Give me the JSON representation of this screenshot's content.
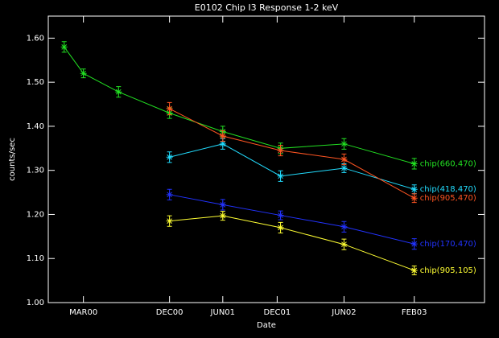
{
  "chart_data": {
    "type": "line",
    "title": "E0102 Chip I3 Response 1-2 keV",
    "x_label": "Date",
    "y_label": "counts/sec",
    "xlim": [
      1999.85,
      2003.7
    ],
    "xticks": [
      {
        "value": 2000.16,
        "label": "MAR00"
      },
      {
        "value": 2000.92,
        "label": "DEC00"
      },
      {
        "value": 2001.39,
        "label": "JUN01"
      },
      {
        "value": 2001.87,
        "label": "DEC01"
      },
      {
        "value": 2002.46,
        "label": "JUN02"
      },
      {
        "value": 2003.08,
        "label": "FEB03"
      }
    ],
    "ylim": [
      1.0,
      1.65
    ],
    "yticks": [
      {
        "value": 1.0,
        "label": "1.00"
      },
      {
        "value": 1.1,
        "label": "1.10"
      },
      {
        "value": 1.2,
        "label": "1.20"
      },
      {
        "value": 1.3,
        "label": "1.30"
      },
      {
        "value": 1.4,
        "label": "1.40"
      },
      {
        "value": 1.5,
        "label": "1.50"
      },
      {
        "value": 1.6,
        "label": "1.60"
      }
    ],
    "series": [
      {
        "name": "chip(660,470)",
        "color": "#22e022",
        "x": [
          1999.99,
          2000.16,
          2000.47,
          2000.92,
          2001.39,
          2001.9,
          2002.46,
          2003.08
        ],
        "values": [
          1.58,
          1.52,
          1.478,
          1.43,
          1.388,
          1.35,
          1.36,
          1.315
        ],
        "errors": [
          0.012,
          0.01,
          0.012,
          0.012,
          0.012,
          0.012,
          0.012,
          0.012
        ]
      },
      {
        "name": "chip(418,470)",
        "color": "#22ddff",
        "x": [
          2000.92,
          2001.39,
          2001.9,
          2002.46,
          2003.08
        ],
        "values": [
          1.33,
          1.36,
          1.287,
          1.305,
          1.257
        ],
        "errors": [
          0.012,
          0.012,
          0.012,
          0.01,
          0.01
        ]
      },
      {
        "name": "chip(905,470)",
        "color": "#ff5522",
        "x": [
          2000.92,
          2001.39,
          2001.9,
          2002.46,
          2003.08
        ],
        "values": [
          1.44,
          1.378,
          1.345,
          1.325,
          1.237
        ],
        "errors": [
          0.014,
          0.012,
          0.012,
          0.012,
          0.01
        ]
      },
      {
        "name": "chip(170,470)",
        "color": "#2233ff",
        "x": [
          2000.92,
          2001.39,
          2001.9,
          2002.46,
          2003.08
        ],
        "values": [
          1.245,
          1.222,
          1.198,
          1.172,
          1.133
        ],
        "errors": [
          0.012,
          0.012,
          0.01,
          0.012,
          0.012
        ]
      },
      {
        "name": "chip(905,105)",
        "color": "#ffff33",
        "x": [
          2000.92,
          2001.39,
          2001.9,
          2002.46,
          2003.08
        ],
        "values": [
          1.185,
          1.197,
          1.17,
          1.132,
          1.073
        ],
        "errors": [
          0.012,
          0.01,
          0.012,
          0.012,
          0.01
        ]
      }
    ]
  }
}
